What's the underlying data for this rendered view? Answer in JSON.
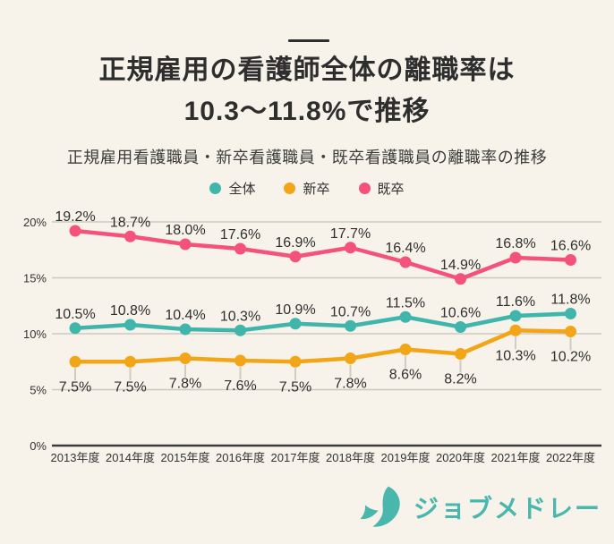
{
  "page": {
    "background": "#F7F3EA"
  },
  "header": {
    "title_line1": "正規雇用の看護師全体の離職率は",
    "title_line2": "10.3〜11.8%で推移",
    "subtitle": "正規雇用看護職員・新卒看護職員・既卒看護職員の離職率の推移"
  },
  "legend": [
    {
      "label": "全体",
      "color": "#3FB5AC"
    },
    {
      "label": "新卒",
      "color": "#F2A516"
    },
    {
      "label": "既卒",
      "color": "#F4527A"
    }
  ],
  "chart_data": {
    "type": "line",
    "title": "正規雇用看護職員・新卒看護職員・既卒看護職員の離職率の推移",
    "categories": [
      "2013年度",
      "2014年度",
      "2015年度",
      "2016年度",
      "2017年度",
      "2018年度",
      "2019年度",
      "2020年度",
      "2021年度",
      "2022年度"
    ],
    "series": [
      {
        "name": "全体",
        "color": "#3FB5AC",
        "label_position": "above",
        "values": [
          10.5,
          10.8,
          10.4,
          10.3,
          10.9,
          10.7,
          11.5,
          10.6,
          11.6,
          11.8
        ]
      },
      {
        "name": "新卒",
        "color": "#F2A516",
        "label_position": "below",
        "values": [
          7.5,
          7.5,
          7.8,
          7.6,
          7.5,
          7.8,
          8.6,
          8.2,
          10.3,
          10.2
        ]
      },
      {
        "name": "既卒",
        "color": "#F4527A",
        "label_position": "above",
        "values": [
          19.2,
          18.7,
          18.0,
          17.6,
          16.9,
          17.7,
          16.4,
          14.9,
          16.8,
          16.6
        ]
      }
    ],
    "ylim": [
      0,
      21
    ],
    "yticks": [
      0,
      5,
      10,
      15,
      20
    ],
    "ytick_labels": [
      "0%",
      "5%",
      "10%",
      "15%",
      "20%"
    ],
    "grid": true,
    "legend_position": "top",
    "colors": {
      "grid_line": "#cdc9c0",
      "axis_line": "#3b3b3b",
      "label_text": "#2f2f2f",
      "leader_line": "rgba(0,0,0,0.16)"
    }
  },
  "footer": {
    "logo_text": "ジョブメドレー",
    "logo_color": "#49B7AC"
  }
}
